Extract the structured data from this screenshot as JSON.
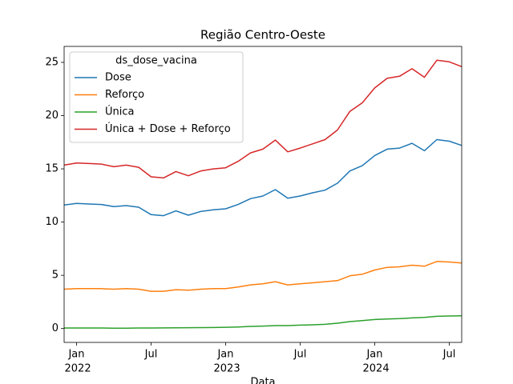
{
  "chart_data": {
    "type": "line",
    "title": "Região Centro-Oeste",
    "x_label": "Data",
    "legend_title": "ds_dose_vacina",
    "legend": "upper left",
    "x": [
      "2021-12",
      "2022-01",
      "2022-02",
      "2022-03",
      "2022-04",
      "2022-05",
      "2022-06",
      "2022-07",
      "2022-08",
      "2022-09",
      "2022-10",
      "2022-11",
      "2022-12",
      "2023-01",
      "2023-02",
      "2023-03",
      "2023-04",
      "2023-05",
      "2023-06",
      "2023-07",
      "2023-08",
      "2023-09",
      "2023-10",
      "2023-11",
      "2023-12",
      "2024-01",
      "2024-02",
      "2024-03",
      "2024-04",
      "2024-05",
      "2024-06",
      "2024-07",
      "2024-08"
    ],
    "xlim": [
      "2021-12",
      "2024-08"
    ],
    "xticks": [
      {
        "value": "2022-01",
        "label": [
          "Jan",
          "2022"
        ]
      },
      {
        "value": "2022-07",
        "label": [
          "Jul"
        ]
      },
      {
        "value": "2023-01",
        "label": [
          "Jan",
          "2023"
        ]
      },
      {
        "value": "2023-07",
        "label": [
          "Jul"
        ]
      },
      {
        "value": "2024-01",
        "label": [
          "Jan",
          "2024"
        ]
      },
      {
        "value": "2024-07",
        "label": [
          "Jul"
        ]
      }
    ],
    "ylim": [
      -1.3,
      26.5
    ],
    "yticks": [
      0,
      5,
      10,
      15,
      20,
      25
    ],
    "series": [
      {
        "name": "Dose",
        "color": "#1f77b4",
        "values": [
          11.6,
          11.75,
          11.7,
          11.65,
          11.45,
          11.55,
          11.4,
          10.7,
          10.6,
          11.05,
          10.65,
          11.0,
          11.15,
          11.25,
          11.65,
          12.2,
          12.45,
          13.05,
          12.25,
          12.45,
          12.75,
          13.0,
          13.65,
          14.8,
          15.3,
          16.25,
          16.85,
          16.95,
          17.4,
          16.7,
          17.75,
          17.6,
          17.2
        ]
      },
      {
        "name": "Reforço",
        "color": "#ff7f0e",
        "values": [
          3.7,
          3.75,
          3.75,
          3.75,
          3.7,
          3.75,
          3.7,
          3.5,
          3.5,
          3.65,
          3.6,
          3.7,
          3.75,
          3.75,
          3.9,
          4.1,
          4.2,
          4.4,
          4.1,
          4.2,
          4.3,
          4.4,
          4.5,
          4.95,
          5.1,
          5.5,
          5.75,
          5.8,
          5.95,
          5.85,
          6.3,
          6.25,
          6.15
        ]
      },
      {
        "name": "Única",
        "color": "#2ca02c",
        "values": [
          0.05,
          0.05,
          0.05,
          0.05,
          0.04,
          0.04,
          0.05,
          0.05,
          0.06,
          0.07,
          0.08,
          0.09,
          0.1,
          0.12,
          0.15,
          0.2,
          0.23,
          0.28,
          0.28,
          0.32,
          0.35,
          0.4,
          0.5,
          0.65,
          0.75,
          0.85,
          0.9,
          0.93,
          1.0,
          1.05,
          1.15,
          1.18,
          1.2
        ]
      },
      {
        "name": "Única + Dose + Reforço",
        "color": "#d62728",
        "values": [
          15.35,
          15.55,
          15.5,
          15.45,
          15.2,
          15.35,
          15.15,
          14.25,
          14.15,
          14.75,
          14.35,
          14.8,
          15.0,
          15.1,
          15.7,
          16.5,
          16.85,
          17.7,
          16.6,
          16.95,
          17.35,
          17.75,
          18.65,
          20.4,
          21.2,
          22.6,
          23.5,
          23.7,
          24.4,
          23.6,
          25.2,
          25.05,
          24.6
        ]
      }
    ]
  }
}
